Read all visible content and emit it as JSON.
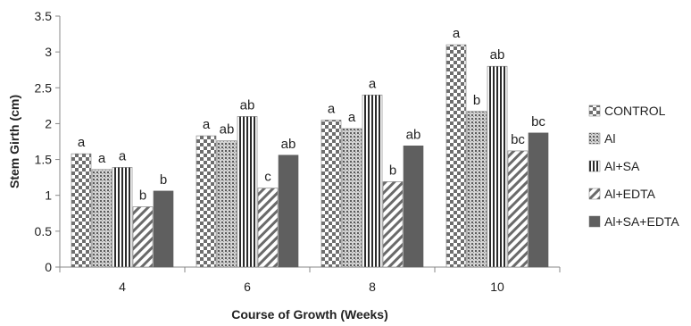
{
  "chart_data": {
    "type": "bar",
    "xlabel": "Course of Growth (Weeks)",
    "ylabel": "Stem Girth (cm)",
    "ylim": [
      0,
      3.5
    ],
    "yticks": [
      "0",
      "0.5",
      "1",
      "1.5",
      "2",
      "2.5",
      "3",
      "3.5"
    ],
    "categories": [
      "4",
      "6",
      "8",
      "10"
    ],
    "legend_position": "right",
    "series": [
      {
        "name": "CONTROL",
        "pattern": "checker",
        "values": [
          1.58,
          1.83,
          2.05,
          3.1
        ],
        "labels": [
          "a",
          "a",
          "a",
          "a"
        ]
      },
      {
        "name": "Al",
        "pattern": "dots",
        "values": [
          1.36,
          1.76,
          1.93,
          2.17
        ],
        "labels": [
          "a",
          "ab",
          "a",
          "b"
        ]
      },
      {
        "name": "Al+SA",
        "pattern": "vstripes",
        "values": [
          1.39,
          2.1,
          2.4,
          2.8
        ],
        "labels": [
          "a",
          "ab",
          "a",
          "ab"
        ]
      },
      {
        "name": "Al+EDTA",
        "pattern": "diagonal",
        "values": [
          0.84,
          1.1,
          1.19,
          1.62
        ],
        "labels": [
          "b",
          "c",
          "b",
          "bc"
        ]
      },
      {
        "name": "Al+SA+EDTA",
        "pattern": "solid",
        "values": [
          1.06,
          1.56,
          1.69,
          1.87
        ],
        "labels": [
          "b",
          "ab",
          "ab",
          "bc"
        ]
      }
    ]
  }
}
